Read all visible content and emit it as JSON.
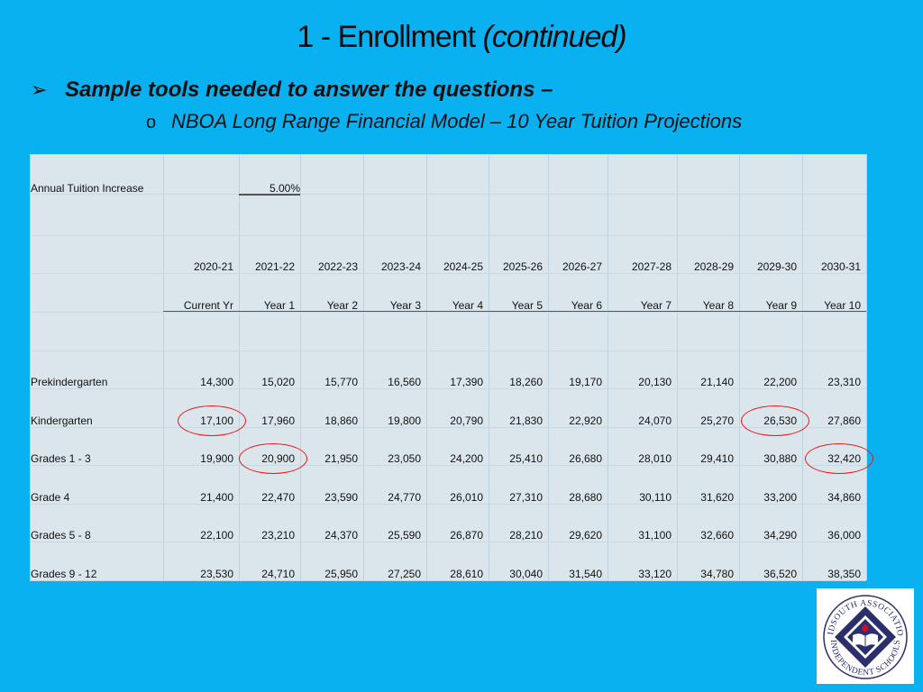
{
  "title": {
    "main": "1 - Enrollment",
    "continued": "(continued)"
  },
  "bullets": {
    "primary": "Sample tools needed to answer the questions –",
    "secondary": "NBOA Long Range Financial Model – 10 Year Tuition Projections"
  },
  "sheet": {
    "increase_label": "Annual Tuition Increase",
    "increase_value": "5.00%",
    "years": [
      "2020-21",
      "2021-22",
      "2022-23",
      "2023-24",
      "2024-25",
      "2025-26",
      "2026-27",
      "2027-28",
      "2028-29",
      "2029-30",
      "2030-31"
    ],
    "periods": [
      "Current Yr",
      "Year 1",
      "Year 2",
      "Year 3",
      "Year 4",
      "Year 5",
      "Year 6",
      "Year 7",
      "Year 8",
      "Year 9",
      "Year 10"
    ],
    "rows": [
      {
        "label": "Prekindergarten",
        "values": [
          "14,300",
          "15,020",
          "15,770",
          "16,560",
          "17,390",
          "18,260",
          "19,170",
          "20,130",
          "21,140",
          "22,200",
          "23,310"
        ]
      },
      {
        "label": "Kindergarten",
        "values": [
          "17,100",
          "17,960",
          "18,860",
          "19,800",
          "20,790",
          "21,830",
          "22,920",
          "24,070",
          "25,270",
          "26,530",
          "27,860"
        ]
      },
      {
        "label": "Grades 1 - 3",
        "values": [
          "19,900",
          "20,900",
          "21,950",
          "23,050",
          "24,200",
          "25,410",
          "26,680",
          "28,010",
          "29,410",
          "30,880",
          "32,420"
        ]
      },
      {
        "label": "Grade 4",
        "values": [
          "21,400",
          "22,470",
          "23,590",
          "24,770",
          "26,010",
          "27,310",
          "28,680",
          "30,110",
          "31,620",
          "33,200",
          "34,860"
        ]
      },
      {
        "label": "Grades 5 - 8",
        "values": [
          "22,100",
          "23,210",
          "24,370",
          "25,590",
          "26,870",
          "28,210",
          "29,620",
          "31,100",
          "32,660",
          "34,290",
          "36,000"
        ]
      },
      {
        "label": "Grades 9 - 12",
        "values": [
          "23,530",
          "24,710",
          "25,950",
          "27,250",
          "28,610",
          "30,040",
          "31,540",
          "33,120",
          "34,780",
          "36,520",
          "38,350"
        ]
      }
    ]
  },
  "logo": {
    "top_text": "MIDSOUTH ASSOCIATION",
    "bottom_text": "INDEPENDENT SCHOOLS"
  },
  "colors": {
    "background": "#09b1f1",
    "sheet": "#dbe6ec",
    "highlight": "#ee1111",
    "logo_navy": "#2b2f6b",
    "logo_red": "#c8102e"
  }
}
